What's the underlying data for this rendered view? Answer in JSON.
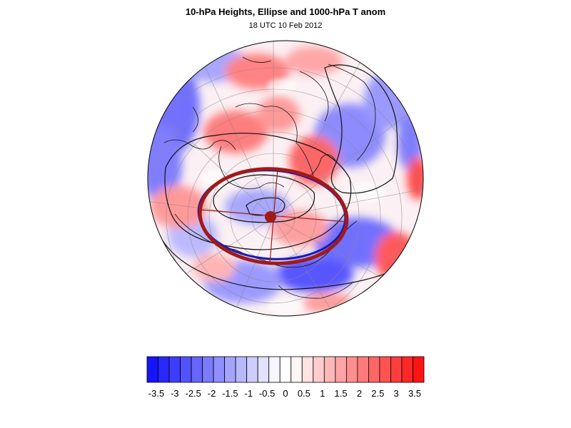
{
  "figure": {
    "title": "10-hPa Heights, Ellipse and 1000-hPa T anom",
    "subtitle": "18 UTC 10 Feb 2012"
  },
  "colorbar": {
    "labels": [
      "-3.5",
      "-3",
      "-2.5",
      "-2",
      "-1.5",
      "-1",
      "-0.5",
      "0",
      "0.5",
      "1",
      "1.5",
      "2",
      "2.5",
      "3",
      "3.5"
    ],
    "colors": [
      "#1414ff",
      "#2828ff",
      "#3d3dff",
      "#5252ff",
      "#6666ff",
      "#7b7bff",
      "#8f8fff",
      "#a4a4ff",
      "#b8b8ff",
      "#cdcdff",
      "#e2e2ff",
      "#f6f6ff",
      "#ffffff",
      "#fff6f6",
      "#ffe2e2",
      "#ffcdcd",
      "#ffb8b8",
      "#ffa4a4",
      "#ff8f8f",
      "#ff7b7b",
      "#ff6666",
      "#ff5252",
      "#ff3d3d",
      "#ff2828",
      "#ff1414"
    ]
  },
  "map": {
    "projection": "orthographic (north pole view)",
    "ellipse_color": "#a01a1a",
    "ellipse_inner_color": "#1a1ab0",
    "anomaly_warm_color": "#ff3030",
    "anomaly_cold_color": "#2020ff"
  }
}
